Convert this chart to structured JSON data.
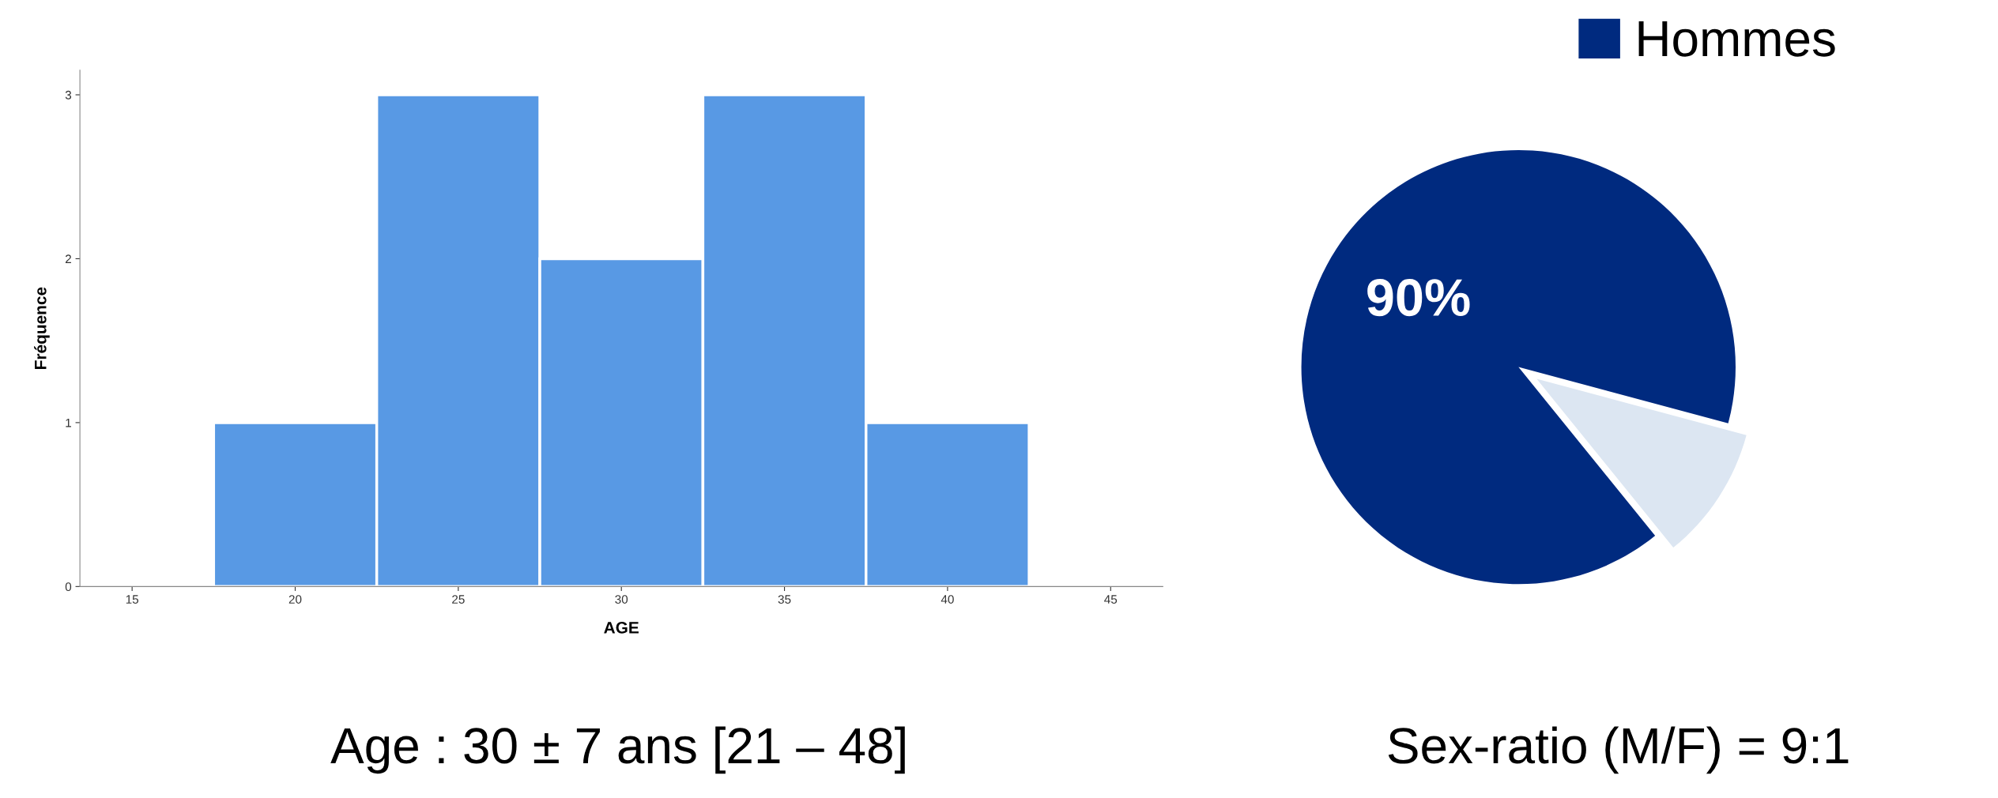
{
  "chart_data": [
    {
      "type": "histogram",
      "xlabel": "AGE",
      "ylabel": "Fréquence",
      "bins": [
        17.5,
        22.5,
        27.5,
        32.5,
        37.5,
        42.5
      ],
      "values": [
        1,
        3,
        2,
        3,
        1
      ],
      "color": "#5899e4",
      "xlim": [
        13.4,
        46.6
      ],
      "xticks": [
        15,
        20,
        25,
        30,
        35,
        40,
        45
      ],
      "ylim": [
        0,
        3.15
      ],
      "yticks": [
        0,
        1,
        2,
        3
      ],
      "grid": false,
      "annotations": [
        "Age : 30 ± 7 ans [21 – 48]"
      ]
    },
    {
      "type": "pie",
      "categories": [
        "Hommes",
        null
      ],
      "values": [
        90,
        10
      ],
      "colors": [
        "#002a7f",
        "#dce6f2"
      ],
      "value_labels": [
        "90%",
        null
      ],
      "legend": "top right",
      "annotations": [
        "Sex-ratio (M/F) = 9:1"
      ]
    }
  ]
}
